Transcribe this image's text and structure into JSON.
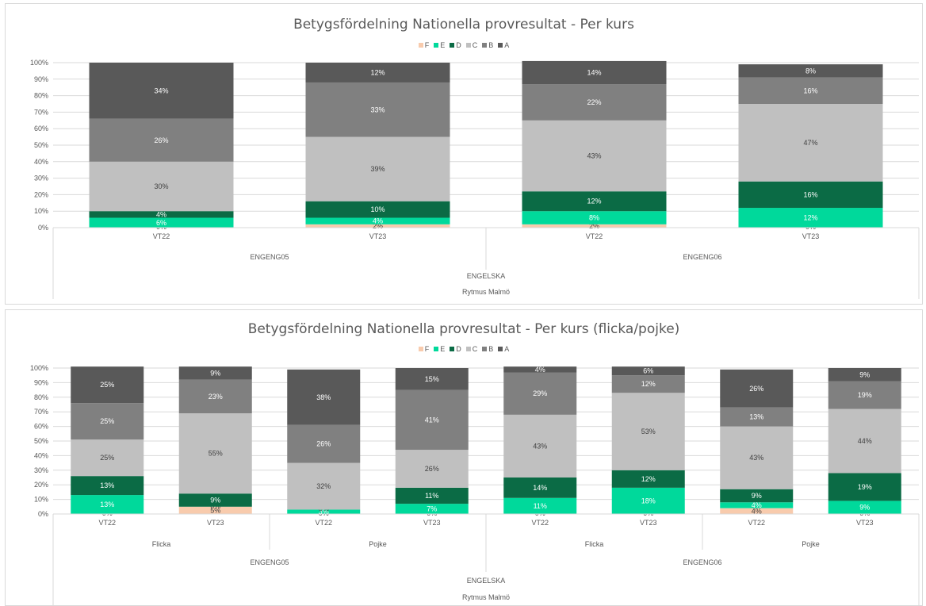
{
  "legend_grades": [
    "F",
    "E",
    "D",
    "C",
    "B",
    "A"
  ],
  "colors": {
    "F": "#f8cbad",
    "E": "#00d99b",
    "D": "#0b6b45",
    "C": "#c0c0c0",
    "B": "#808080",
    "A": "#595959",
    "grid": "#d9d9d9",
    "axis_text": "#595959",
    "label_dark": "#404040",
    "label_light": "#ffffff"
  },
  "chart_data": [
    {
      "type": "bar",
      "stacked": true,
      "normalized": true,
      "title": "Betygsfördelning Nationella provresultat - Per kurs",
      "ylim": [
        0,
        100
      ],
      "yticks": [
        "0%",
        "10%",
        "20%",
        "30%",
        "40%",
        "50%",
        "60%",
        "70%",
        "80%",
        "90%",
        "100%"
      ],
      "legend": [
        "F",
        "E",
        "D",
        "C",
        "B",
        "A"
      ],
      "legend_position": "top",
      "categories": [
        "VT22",
        "VT23",
        "VT22",
        "VT23"
      ],
      "course_groups": [
        "ENGENG05",
        "ENGENG06"
      ],
      "subject": "ENGELSKA",
      "school": "Rytmus Malmö",
      "series": [
        {
          "name": "F",
          "values": [
            0,
            2,
            2,
            0
          ]
        },
        {
          "name": "E",
          "values": [
            6,
            4,
            8,
            12
          ]
        },
        {
          "name": "D",
          "values": [
            4,
            10,
            12,
            16
          ]
        },
        {
          "name": "C",
          "values": [
            30,
            39,
            43,
            47
          ]
        },
        {
          "name": "B",
          "values": [
            26,
            33,
            22,
            16
          ]
        },
        {
          "name": "A",
          "values": [
            34,
            12,
            14,
            8
          ]
        }
      ]
    },
    {
      "type": "bar",
      "stacked": true,
      "normalized": true,
      "title": "Betygsfördelning Nationella provresultat - Per kurs (flicka/pojke)",
      "ylim": [
        0,
        100
      ],
      "yticks": [
        "0%",
        "10%",
        "20%",
        "30%",
        "40%",
        "50%",
        "60%",
        "70%",
        "80%",
        "90%",
        "100%"
      ],
      "legend": [
        "F",
        "E",
        "D",
        "C",
        "B",
        "A"
      ],
      "legend_position": "top",
      "categories": [
        "VT22",
        "VT23",
        "VT22",
        "VT23",
        "VT22",
        "VT23",
        "VT22",
        "VT23"
      ],
      "gender_groups": [
        "Flicka",
        "Pojke",
        "Flicka",
        "Pojke"
      ],
      "course_groups": [
        "ENGENG05",
        "ENGENG06"
      ],
      "subject": "ENGELSKA",
      "school": "Rytmus Malmö",
      "series": [
        {
          "name": "F",
          "values": [
            0,
            5,
            0,
            0,
            0,
            0,
            4,
            0
          ]
        },
        {
          "name": "E",
          "values": [
            13,
            0,
            3,
            7,
            11,
            18,
            4,
            9
          ]
        },
        {
          "name": "D",
          "values": [
            13,
            9,
            0,
            11,
            14,
            12,
            9,
            19
          ]
        },
        {
          "name": "C",
          "values": [
            25,
            55,
            32,
            26,
            43,
            53,
            43,
            44
          ]
        },
        {
          "name": "B",
          "values": [
            25,
            23,
            26,
            41,
            29,
            12,
            13,
            19
          ]
        },
        {
          "name": "A",
          "values": [
            25,
            9,
            38,
            15,
            4,
            6,
            26,
            9
          ]
        }
      ]
    }
  ]
}
